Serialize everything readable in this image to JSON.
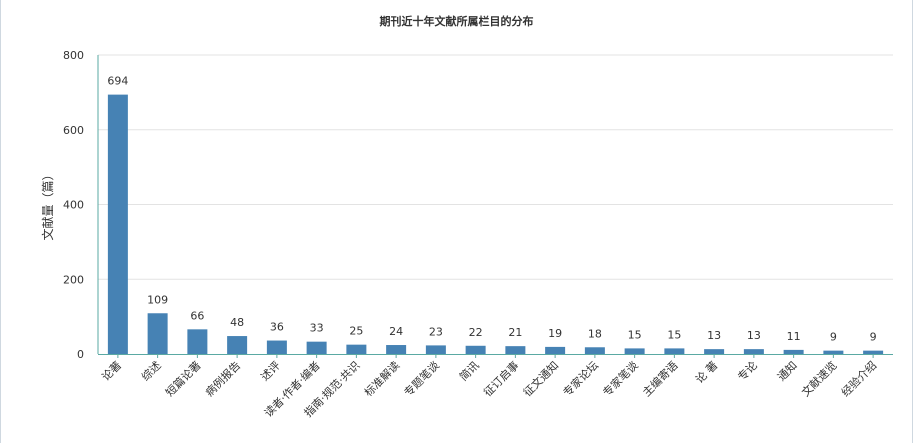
{
  "chart_data": {
    "type": "bar",
    "title": "期刊近十年文献所属栏目的分布",
    "xlabel": "",
    "ylabel": "文献量（篇）",
    "ylim": [
      0,
      800
    ],
    "yticks": [
      0,
      200,
      400,
      600,
      800
    ],
    "grid": true,
    "legend": "none",
    "bar_color": "#4682b4",
    "categories": [
      "论著",
      "综述",
      "短篇论著",
      "病例报告",
      "述评",
      "读者·作者·编者",
      "指南·规范·共识",
      "标准解读",
      "专题笔谈",
      "简讯",
      "征订启事",
      "征文通知",
      "专家论坛",
      "专家笔谈",
      "主编寄语",
      "论 著",
      "专论",
      "通知",
      "文献速览",
      "经验介绍"
    ],
    "values": [
      694,
      109,
      66,
      48,
      36,
      33,
      25,
      24,
      23,
      22,
      21,
      19,
      18,
      15,
      15,
      13,
      13,
      11,
      9,
      9
    ]
  }
}
